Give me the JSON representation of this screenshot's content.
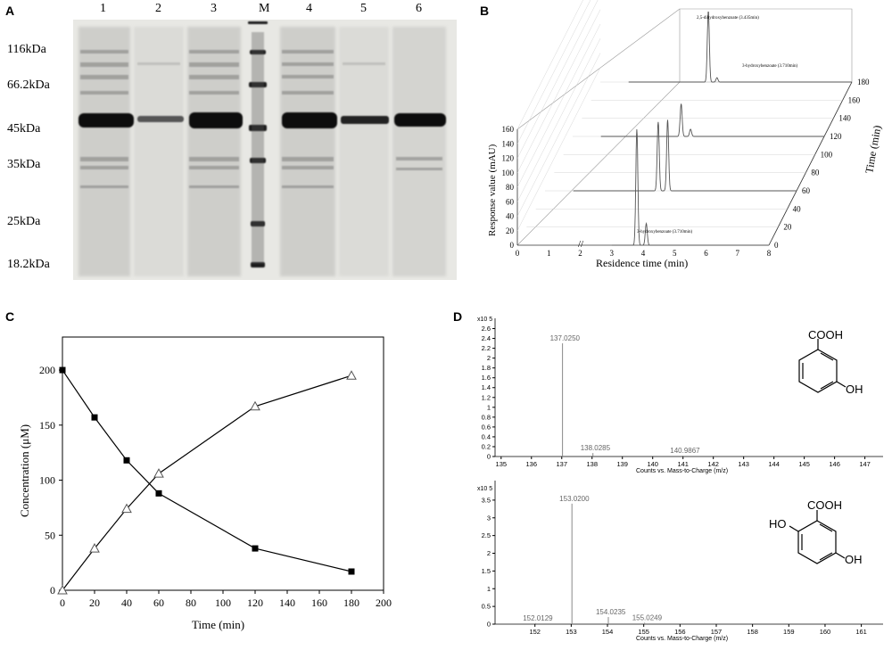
{
  "panels": {
    "A": "A",
    "B": "B",
    "C": "C",
    "D": "D"
  },
  "gel": {
    "lanes": [
      "1",
      "2",
      "3",
      "M",
      "4",
      "5",
      "6"
    ],
    "markers": [
      "116kDa",
      "66.2kDa",
      "45kDa",
      "35kDa",
      "25kDa",
      "18.2kDa"
    ]
  },
  "chart_data": [
    {
      "id": "B",
      "type": "line",
      "subtype": "3d-waterfall-chromatogram",
      "xlabel": "Residence time (min)",
      "ylabel": "Response value (mAU)",
      "zlabel": "Time (min)",
      "x_ticks": [
        "0",
        "1",
        "2",
        "3",
        "4",
        "5",
        "6",
        "7",
        "8"
      ],
      "y_ticks": [
        "0",
        "20",
        "40",
        "60",
        "80",
        "100",
        "120",
        "140",
        "160"
      ],
      "z_ticks": [
        "0",
        "20",
        "40",
        "60",
        "80",
        "100",
        "120",
        "140",
        "160",
        "180"
      ],
      "axis_break": "x between 2 and 3",
      "annotations": [
        "2,5-dihydroxybenzoate (3.435min)",
        "3-hydroxybenzoate (3.710min)",
        "3-hydroxybenzoate (3.710min)"
      ],
      "series": [
        {
          "z": 0,
          "peaks": [
            {
              "x": 3.8,
              "y": 160
            },
            {
              "x": 4.1,
              "y": 30
            }
          ]
        },
        {
          "z": 60,
          "peaks": [
            {
              "x": 3.6,
              "y": 95
            },
            {
              "x": 3.9,
              "y": 98
            }
          ]
        },
        {
          "z": 120,
          "peaks": [
            {
              "x": 3.45,
              "y": 45
            },
            {
              "x": 3.75,
              "y": 10
            }
          ]
        },
        {
          "z": 180,
          "peaks": [
            {
              "x": 3.435,
              "y": 98
            },
            {
              "x": 3.71,
              "y": 6
            }
          ]
        }
      ]
    },
    {
      "id": "C",
      "type": "line",
      "xlabel": "Time (min)",
      "ylabel": "Concentration (μM)",
      "xlim": [
        0,
        200
      ],
      "ylim": [
        0,
        230
      ],
      "x_ticks": [
        "0",
        "20",
        "40",
        "60",
        "80",
        "100",
        "120",
        "140",
        "160",
        "180",
        "200"
      ],
      "y_ticks": [
        "0",
        "50",
        "100",
        "150",
        "200"
      ],
      "x": [
        0,
        20,
        40,
        60,
        120,
        180
      ],
      "series": [
        {
          "marker": "square",
          "values": [
            200,
            157,
            118,
            88,
            38,
            17
          ]
        },
        {
          "marker": "triangle",
          "values": [
            0,
            38,
            74,
            106,
            167,
            195
          ]
        }
      ]
    },
    {
      "id": "D1",
      "type": "bar",
      "subtype": "mass-spectrum",
      "xlabel": "Counts vs. Mass-to-Charge (m/z)",
      "scale_label": "x10 5",
      "xlim": [
        134.8,
        147.6
      ],
      "ylim": [
        0,
        2.7
      ],
      "x_ticks": [
        "135",
        "136",
        "137",
        "138",
        "139",
        "140",
        "141",
        "142",
        "143",
        "144",
        "145",
        "146",
        "147"
      ],
      "y_ticks": [
        "0",
        "0.2",
        "0.4",
        "0.6",
        "0.8",
        "1",
        "1.2",
        "1.4",
        "1.6",
        "1.8",
        "2",
        "2.2",
        "2.4",
        "2.6"
      ],
      "peaks": [
        {
          "mz": 137.025,
          "intensity": 2.3,
          "label": "137.0250"
        },
        {
          "mz": 138.0285,
          "intensity": 0.07,
          "label": "138.0285"
        },
        {
          "mz": 140.9867,
          "intensity": 0.02,
          "label": "140.9867"
        }
      ],
      "structure": {
        "group1": "COOH",
        "group2": "OH"
      }
    },
    {
      "id": "D2",
      "type": "bar",
      "subtype": "mass-spectrum",
      "xlabel": "Counts vs. Mass-to-Charge (m/z)",
      "scale_label": "x10 5",
      "xlim": [
        150.9,
        161.6
      ],
      "ylim": [
        0,
        3.9
      ],
      "x_ticks": [
        "152",
        "153",
        "154",
        "155",
        "156",
        "157",
        "158",
        "159",
        "160",
        "161"
      ],
      "y_ticks": [
        "0",
        "0.5",
        "1",
        "1.5",
        "2",
        "2.5",
        "3",
        "3.5"
      ],
      "peaks": [
        {
          "mz": 152.0129,
          "intensity": 0.03,
          "label": "152.0129"
        },
        {
          "mz": 153.02,
          "intensity": 3.4,
          "label": "153.0200"
        },
        {
          "mz": 154.0235,
          "intensity": 0.2,
          "label": "154.0235"
        },
        {
          "mz": 155.0249,
          "intensity": 0.04,
          "label": "155.0249"
        }
      ],
      "structure": {
        "group1": "HO",
        "group2": "COOH",
        "group3": "OH"
      }
    }
  ]
}
